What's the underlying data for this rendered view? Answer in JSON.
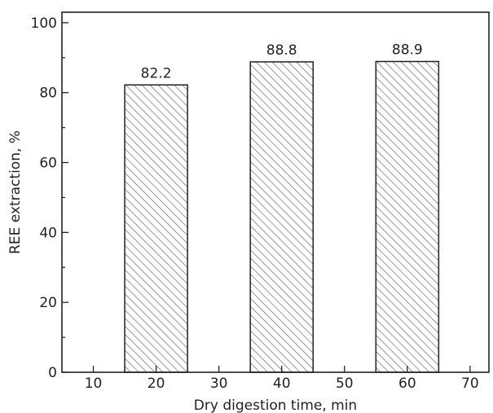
{
  "chart_data": {
    "type": "bar",
    "x": [
      20,
      40,
      60
    ],
    "values": [
      82.2,
      88.8,
      88.9
    ],
    "data_labels": [
      "82.2",
      "88.8",
      "88.9"
    ],
    "bar_width": 10,
    "xlabel": "Dry digestion time, min",
    "ylabel": "REE extraction, %",
    "xlim": [
      5,
      73
    ],
    "ylim": [
      0,
      103
    ],
    "xticks": [
      10,
      20,
      30,
      40,
      50,
      60,
      70
    ],
    "yticks": [
      0,
      20,
      40,
      60,
      80,
      100
    ],
    "grid": false,
    "legend": "none",
    "fill": "diagonal-hatch",
    "colors": {
      "bar_edge": "#222222",
      "hatch": "#555555",
      "axis": "#222222"
    }
  }
}
